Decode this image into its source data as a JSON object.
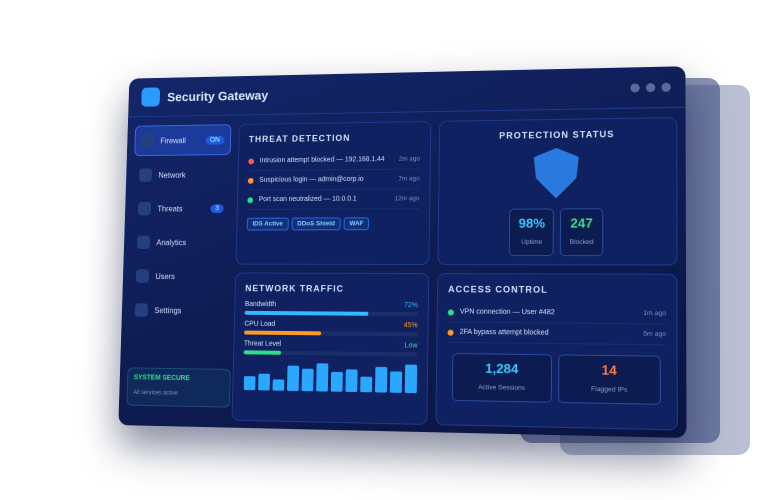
{
  "header": {
    "title": "Security Gateway"
  },
  "sidebar": {
    "items": [
      {
        "label": "Firewall",
        "badge": "ON"
      },
      {
        "label": "Network"
      },
      {
        "label": "Threats",
        "badge": "3"
      },
      {
        "label": "Analytics"
      },
      {
        "label": "Users"
      },
      {
        "label": "Settings"
      }
    ],
    "status": {
      "title": "SYSTEM SECURE",
      "subtitle": "All services active"
    }
  },
  "threat": {
    "title": "THREAT DETECTION",
    "events": [
      {
        "text": "Intrusion attempt blocked — 192.168.1.44",
        "time": "2m ago",
        "color": "#ff5a4a"
      },
      {
        "text": "Suspicious login — admin@corp.io",
        "time": "7m ago",
        "color": "#ff9a2a"
      },
      {
        "text": "Port scan neutralized — 10.0.0.1",
        "time": "12m ago",
        "color": "#2ee08a"
      }
    ],
    "tags": [
      "IDS Active",
      "DDoS Shield",
      "WAF"
    ]
  },
  "protection": {
    "title": "PROTECTION STATUS",
    "stats": [
      {
        "value": "98%",
        "label": "Uptime",
        "color": "#35c8ff"
      },
      {
        "value": "247",
        "label": "Blocked",
        "color": "#2ee08a"
      }
    ]
  },
  "traffic": {
    "title": "NETWORK TRAFFIC",
    "meters": [
      {
        "label": "Bandwidth",
        "value": 72,
        "value_label": "72%",
        "color": "#35b8ff"
      },
      {
        "label": "CPU Load",
        "value": 45,
        "value_label": "45%",
        "color": "#ff9a2a"
      },
      {
        "label": "Threat Level",
        "value": 22,
        "value_label": "Low",
        "color": "#2ee08a"
      }
    ],
    "bars": [
      10,
      12,
      8,
      18,
      16,
      20,
      14,
      16,
      11,
      18,
      15,
      20
    ]
  },
  "access": {
    "title": "ACCESS CONTROL",
    "events": [
      {
        "text": "VPN connection — User #482",
        "time": "1m ago",
        "color": "#2ee08a"
      },
      {
        "text": "2FA bypass attempt blocked",
        "time": "5m ago",
        "color": "#ff9a2a"
      }
    ],
    "stats": [
      {
        "value": "1,284",
        "label": "Active Sessions",
        "color": "#35c8ff"
      },
      {
        "value": "14",
        "label": "Flagged IPs",
        "color": "#ff7a3a"
      }
    ]
  }
}
